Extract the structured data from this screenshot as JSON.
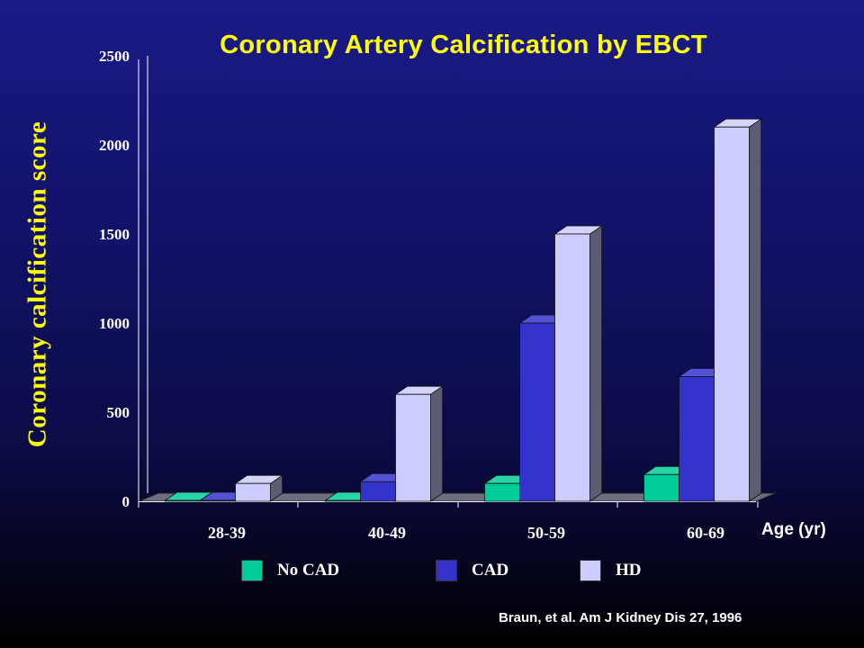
{
  "chart_data": {
    "type": "bar",
    "title": "Coronary Artery Calcification by EBCT",
    "xlabel": "Age (yr)",
    "ylabel": "Coronary calcification score",
    "ylim": [
      0,
      2500
    ],
    "yticks": [
      "0",
      "500",
      "1000",
      "1500",
      "2000",
      "2500"
    ],
    "categories": [
      "28-39",
      "40-49",
      "50-59",
      "60-69"
    ],
    "series": [
      {
        "name": "No CAD",
        "color": "#00cc99",
        "values": [
          5,
          5,
          100,
          150
        ]
      },
      {
        "name": "CAD",
        "color": "#3333cc",
        "values": [
          5,
          110,
          1000,
          700
        ]
      },
      {
        "name": "HD",
        "color": "#ccccff",
        "values": [
          100,
          600,
          1500,
          2100
        ]
      }
    ],
    "legend_position": "bottom",
    "citation": "Braun, et al. Am J Kidney Dis 27, 1996"
  }
}
